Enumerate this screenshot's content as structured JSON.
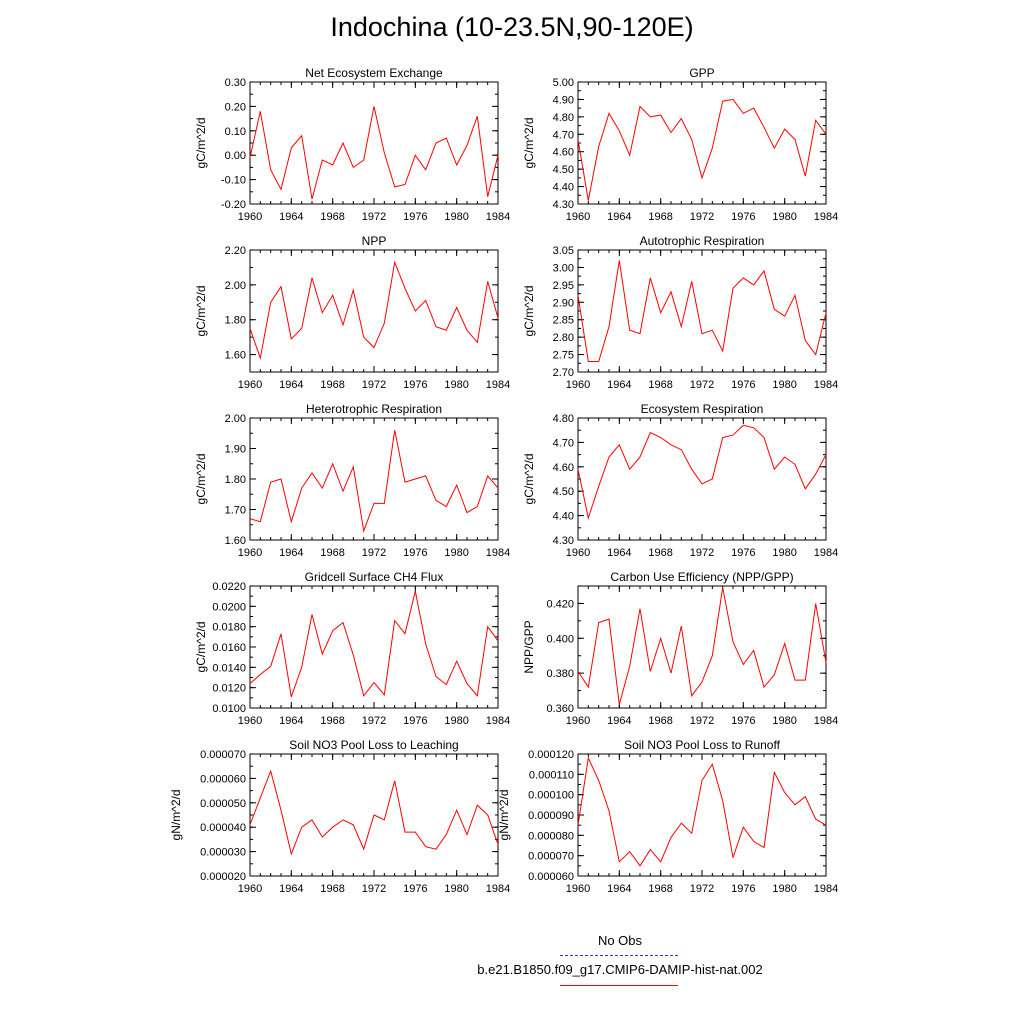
{
  "title": "Indochina (10-23.5N,90-120E)",
  "legend": {
    "obs_label": "No Obs",
    "obs_color": "#3333cc",
    "model_label": "b.e21.B1850.f09_g17.CMIP6-DAMIP-hist-nat.002",
    "model_color": "#ff0000"
  },
  "chart_data": [
    {
      "type": "line",
      "title": "Net Ecosystem Exchange",
      "ylabel": "gC/m^2/d",
      "xlim": [
        1960,
        1984
      ],
      "ylim": [
        -0.2,
        0.3
      ],
      "xticks": [
        "1960",
        "1964",
        "1968",
        "1972",
        "1976",
        "1980",
        "1984"
      ],
      "yticks": [
        "-0.20",
        "-0.10",
        "0.00",
        "0.10",
        "0.20",
        "0.30"
      ],
      "x": [
        1960,
        1961,
        1962,
        1963,
        1964,
        1965,
        1966,
        1967,
        1968,
        1969,
        1970,
        1971,
        1972,
        1973,
        1974,
        1975,
        1976,
        1977,
        1978,
        1979,
        1980,
        1981,
        1982,
        1983,
        1984
      ],
      "values": [
        -0.01,
        0.18,
        -0.06,
        -0.14,
        0.03,
        0.08,
        -0.18,
        -0.02,
        -0.04,
        0.05,
        -0.05,
        -0.02,
        0.2,
        0.01,
        -0.13,
        -0.12,
        0.0,
        -0.06,
        0.05,
        0.07,
        -0.04,
        0.04,
        0.16,
        -0.17,
        0.0
      ]
    },
    {
      "type": "line",
      "title": "GPP",
      "ylabel": "gC/m^2/d",
      "xlim": [
        1960,
        1984
      ],
      "ylim": [
        4.3,
        5.0
      ],
      "xticks": [
        "1960",
        "1964",
        "1968",
        "1972",
        "1976",
        "1980",
        "1984"
      ],
      "yticks": [
        "4.30",
        "4.40",
        "4.50",
        "4.60",
        "4.70",
        "4.80",
        "4.90",
        "5.00"
      ],
      "x": [
        1960,
        1961,
        1962,
        1963,
        1964,
        1965,
        1966,
        1967,
        1968,
        1969,
        1970,
        1971,
        1972,
        1973,
        1974,
        1975,
        1976,
        1977,
        1978,
        1979,
        1980,
        1981,
        1982,
        1983,
        1984
      ],
      "values": [
        4.67,
        4.32,
        4.63,
        4.82,
        4.72,
        4.58,
        4.86,
        4.8,
        4.81,
        4.71,
        4.79,
        4.67,
        4.45,
        4.62,
        4.89,
        4.9,
        4.82,
        4.85,
        4.74,
        4.62,
        4.73,
        4.67,
        4.46,
        4.78,
        4.7
      ]
    },
    {
      "type": "line",
      "title": "NPP",
      "ylabel": "gC/m^2/d",
      "xlim": [
        1960,
        1984
      ],
      "ylim": [
        1.5,
        2.2
      ],
      "xticks": [
        "1960",
        "1964",
        "1968",
        "1972",
        "1976",
        "1980",
        "1984"
      ],
      "yticks": [
        "1.60",
        "1.80",
        "2.00",
        "2.20"
      ],
      "x": [
        1960,
        1961,
        1962,
        1963,
        1964,
        1965,
        1966,
        1967,
        1968,
        1969,
        1970,
        1971,
        1972,
        1973,
        1974,
        1975,
        1976,
        1977,
        1978,
        1979,
        1980,
        1981,
        1982,
        1983,
        1984
      ],
      "values": [
        1.75,
        1.58,
        1.9,
        1.99,
        1.69,
        1.75,
        2.04,
        1.84,
        1.94,
        1.77,
        1.97,
        1.7,
        1.64,
        1.78,
        2.13,
        1.98,
        1.85,
        1.91,
        1.76,
        1.74,
        1.87,
        1.74,
        1.67,
        2.02,
        1.81
      ]
    },
    {
      "type": "line",
      "title": "Autotrophic Respiration",
      "ylabel": "gC/m^2/d",
      "xlim": [
        1960,
        1984
      ],
      "ylim": [
        2.7,
        3.05
      ],
      "xticks": [
        "1960",
        "1964",
        "1968",
        "1972",
        "1976",
        "1980",
        "1984"
      ],
      "yticks": [
        "2.70",
        "2.75",
        "2.80",
        "2.85",
        "2.90",
        "2.95",
        "3.00",
        "3.05"
      ],
      "x": [
        1960,
        1961,
        1962,
        1963,
        1964,
        1965,
        1966,
        1967,
        1968,
        1969,
        1970,
        1971,
        1972,
        1973,
        1974,
        1975,
        1976,
        1977,
        1978,
        1979,
        1980,
        1981,
        1982,
        1983,
        1984
      ],
      "values": [
        2.92,
        2.73,
        2.73,
        2.83,
        3.02,
        2.82,
        2.81,
        2.97,
        2.87,
        2.93,
        2.83,
        2.96,
        2.81,
        2.82,
        2.76,
        2.94,
        2.97,
        2.95,
        2.99,
        2.88,
        2.86,
        2.92,
        2.79,
        2.75,
        2.87
      ]
    },
    {
      "type": "line",
      "title": "Heterotrophic Respiration",
      "ylabel": "gC/m^2/d",
      "xlim": [
        1960,
        1984
      ],
      "ylim": [
        1.6,
        2.0
      ],
      "xticks": [
        "1960",
        "1964",
        "1968",
        "1972",
        "1976",
        "1980",
        "1984"
      ],
      "yticks": [
        "1.60",
        "1.70",
        "1.80",
        "1.90",
        "2.00"
      ],
      "x": [
        1960,
        1961,
        1962,
        1963,
        1964,
        1965,
        1966,
        1967,
        1968,
        1969,
        1970,
        1971,
        1972,
        1973,
        1974,
        1975,
        1976,
        1977,
        1978,
        1979,
        1980,
        1981,
        1982,
        1983,
        1984
      ],
      "values": [
        1.67,
        1.66,
        1.79,
        1.8,
        1.66,
        1.77,
        1.82,
        1.77,
        1.85,
        1.76,
        1.84,
        1.63,
        1.72,
        1.72,
        1.96,
        1.79,
        1.8,
        1.81,
        1.73,
        1.71,
        1.78,
        1.69,
        1.71,
        1.81,
        1.77
      ]
    },
    {
      "type": "line",
      "title": "Ecosystem Respiration",
      "ylabel": "gC/m^2/d",
      "xlim": [
        1960,
        1984
      ],
      "ylim": [
        4.3,
        4.8
      ],
      "xticks": [
        "1960",
        "1964",
        "1968",
        "1972",
        "1976",
        "1980",
        "1984"
      ],
      "yticks": [
        "4.30",
        "4.40",
        "4.50",
        "4.60",
        "4.70",
        "4.80"
      ],
      "x": [
        1960,
        1961,
        1962,
        1963,
        1964,
        1965,
        1966,
        1967,
        1968,
        1969,
        1970,
        1971,
        1972,
        1973,
        1974,
        1975,
        1976,
        1977,
        1978,
        1979,
        1980,
        1981,
        1982,
        1983,
        1984
      ],
      "values": [
        4.59,
        4.39,
        4.52,
        4.64,
        4.69,
        4.59,
        4.64,
        4.74,
        4.72,
        4.69,
        4.67,
        4.59,
        4.53,
        4.55,
        4.72,
        4.73,
        4.77,
        4.76,
        4.72,
        4.59,
        4.64,
        4.61,
        4.51,
        4.57,
        4.65
      ]
    },
    {
      "type": "line",
      "title": "Gridcell Surface CH4 Flux",
      "ylabel": "gC/m^2/d",
      "xlim": [
        1960,
        1984
      ],
      "ylim": [
        0.01,
        0.022
      ],
      "xticks": [
        "1960",
        "1964",
        "1968",
        "1972",
        "1976",
        "1980",
        "1984"
      ],
      "yticks": [
        "0.0100",
        "0.0120",
        "0.0140",
        "0.0160",
        "0.0180",
        "0.0200",
        "0.0220"
      ],
      "x": [
        1960,
        1961,
        1962,
        1963,
        1964,
        1965,
        1966,
        1967,
        1968,
        1969,
        1970,
        1971,
        1972,
        1973,
        1974,
        1975,
        1976,
        1977,
        1978,
        1979,
        1980,
        1981,
        1982,
        1983,
        1984
      ],
      "values": [
        0.0124,
        0.0133,
        0.0141,
        0.0173,
        0.0111,
        0.014,
        0.0192,
        0.0153,
        0.0176,
        0.0184,
        0.0152,
        0.0112,
        0.0125,
        0.0113,
        0.0186,
        0.0173,
        0.0215,
        0.0163,
        0.0131,
        0.0123,
        0.0146,
        0.0124,
        0.0112,
        0.018,
        0.0166
      ]
    },
    {
      "type": "line",
      "title": "Carbon Use Efficiency (NPP/GPP)",
      "ylabel": "NPP/GPP",
      "xlim": [
        1960,
        1984
      ],
      "ylim": [
        0.36,
        0.43
      ],
      "xticks": [
        "1960",
        "1964",
        "1968",
        "1972",
        "1976",
        "1980",
        "1984"
      ],
      "yticks": [
        "0.360",
        "0.380",
        "0.400",
        "0.420"
      ],
      "x": [
        1960,
        1961,
        1962,
        1963,
        1964,
        1965,
        1966,
        1967,
        1968,
        1969,
        1970,
        1971,
        1972,
        1973,
        1974,
        1975,
        1976,
        1977,
        1978,
        1979,
        1980,
        1981,
        1982,
        1983,
        1984
      ],
      "values": [
        0.381,
        0.372,
        0.409,
        0.411,
        0.362,
        0.384,
        0.417,
        0.381,
        0.4,
        0.38,
        0.407,
        0.367,
        0.375,
        0.39,
        0.429,
        0.398,
        0.385,
        0.393,
        0.372,
        0.379,
        0.397,
        0.376,
        0.376,
        0.42,
        0.386
      ]
    },
    {
      "type": "line",
      "title": "Soil NO3 Pool Loss to Leaching",
      "ylabel": "gN/m^2/d",
      "xlim": [
        1960,
        1984
      ],
      "ylim": [
        2e-05,
        7e-05
      ],
      "xticks": [
        "1960",
        "1964",
        "1968",
        "1972",
        "1976",
        "1980",
        "1984"
      ],
      "yticks": [
        "0.000020",
        "0.000030",
        "0.000040",
        "0.000050",
        "0.000060",
        "0.000070"
      ],
      "x": [
        1960,
        1961,
        1962,
        1963,
        1964,
        1965,
        1966,
        1967,
        1968,
        1969,
        1970,
        1971,
        1972,
        1973,
        1974,
        1975,
        1976,
        1977,
        1978,
        1979,
        1980,
        1981,
        1982,
        1983,
        1984
      ],
      "values": [
        4.1e-05,
        5.2e-05,
        6.3e-05,
        4.7e-05,
        2.9e-05,
        4e-05,
        4.3e-05,
        3.6e-05,
        4e-05,
        4.3e-05,
        4.1e-05,
        3.1e-05,
        4.5e-05,
        4.3e-05,
        5.9e-05,
        3.8e-05,
        3.8e-05,
        3.2e-05,
        3.1e-05,
        3.7e-05,
        4.7e-05,
        3.7e-05,
        4.9e-05,
        4.5e-05,
        3.3e-05
      ]
    },
    {
      "type": "line",
      "title": "Soil NO3 Pool Loss to Runoff",
      "ylabel": "gN/m^2/d",
      "xlim": [
        1960,
        1984
      ],
      "ylim": [
        6e-05,
        0.00012
      ],
      "xticks": [
        "1960",
        "1964",
        "1968",
        "1972",
        "1976",
        "1980",
        "1984"
      ],
      "yticks": [
        "0.000060",
        "0.000070",
        "0.000080",
        "0.000090",
        "0.000100",
        "0.000110",
        "0.000120"
      ],
      "x": [
        1960,
        1961,
        1962,
        1963,
        1964,
        1965,
        1966,
        1967,
        1968,
        1969,
        1970,
        1971,
        1972,
        1973,
        1974,
        1975,
        1976,
        1977,
        1978,
        1979,
        1980,
        1981,
        1982,
        1983,
        1984
      ],
      "values": [
        8.5e-05,
        0.000118,
        0.000107,
        9.2e-05,
        6.7e-05,
        7.2e-05,
        6.5e-05,
        7.3e-05,
        6.7e-05,
        7.9e-05,
        8.6e-05,
        8.1e-05,
        0.000107,
        0.000115,
        9.7e-05,
        6.9e-05,
        8.4e-05,
        7.7e-05,
        7.4e-05,
        0.000111,
        0.000101,
        9.5e-05,
        9.9e-05,
        8.8e-05,
        8.5e-05
      ]
    }
  ]
}
